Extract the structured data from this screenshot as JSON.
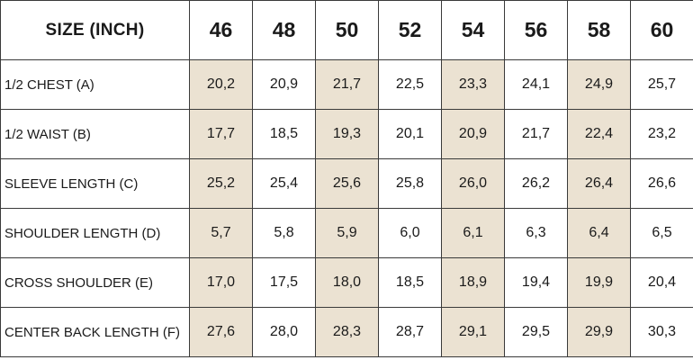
{
  "header": {
    "corner_label": "SIZE (INCH)",
    "sizes": [
      "46",
      "48",
      "50",
      "52",
      "54",
      "56",
      "58",
      "60"
    ]
  },
  "rows": [
    {
      "label": "1/2 CHEST (A)",
      "values": [
        "20,2",
        "20,9",
        "21,7",
        "22,5",
        "23,3",
        "24,1",
        "24,9",
        "25,7"
      ]
    },
    {
      "label": "1/2 WAIST (B)",
      "values": [
        "17,7",
        "18,5",
        "19,3",
        "20,1",
        "20,9",
        "21,7",
        "22,4",
        "23,2"
      ]
    },
    {
      "label": "SLEEVE LENGTH (C)",
      "values": [
        "25,2",
        "25,4",
        "25,6",
        "25,8",
        "26,0",
        "26,2",
        "26,4",
        "26,6"
      ]
    },
    {
      "label": "SHOULDER LENGTH (D)",
      "values": [
        "5,7",
        "5,8",
        "5,9",
        "6,0",
        "6,1",
        "6,3",
        "6,4",
        "6,5"
      ]
    },
    {
      "label": "CROSS SHOULDER (E)",
      "values": [
        "17,0",
        "17,5",
        "18,0",
        "18,5",
        "18,9",
        "19,4",
        "19,9",
        "20,4"
      ]
    },
    {
      "label": "CENTER BACK LENGTH (F)",
      "values": [
        "27,6",
        "28,0",
        "28,3",
        "28,7",
        "29,1",
        "29,5",
        "29,9",
        "30,3"
      ]
    }
  ],
  "colors": {
    "shade": "#ebe2d2",
    "border": "#3a3a3a",
    "text": "#1a1a1a"
  }
}
